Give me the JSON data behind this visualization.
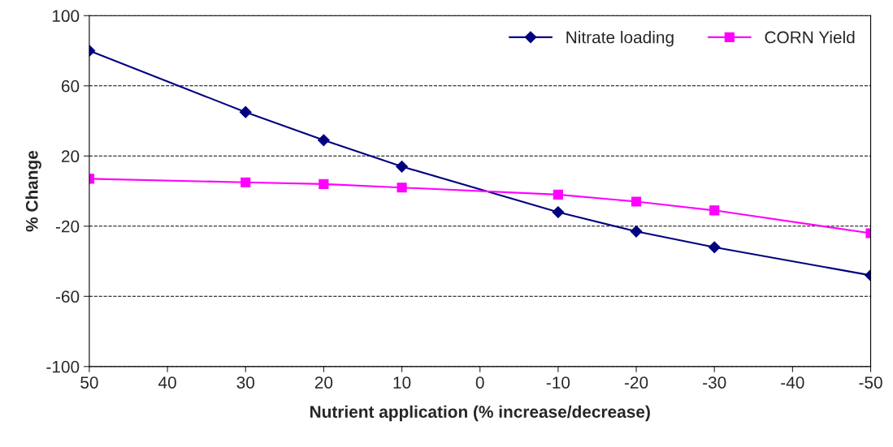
{
  "chart_data": {
    "type": "line",
    "xlabel": "Nutrient application (% increase/decrease)",
    "ylabel": "% Change",
    "x": [
      50,
      30,
      20,
      10,
      -10,
      -20,
      -30,
      -50
    ],
    "series": [
      {
        "name": "Nitrate loading",
        "color": "#000080",
        "marker": "diamond",
        "values": [
          80,
          45,
          29,
          14,
          -12,
          -23,
          -32,
          -48
        ]
      },
      {
        "name": "CORN Yield",
        "color": "#ff00ff",
        "marker": "square",
        "values": [
          7,
          5,
          4,
          2,
          -2,
          -6,
          -11,
          -24
        ]
      }
    ],
    "xlim": [
      50,
      -50
    ],
    "xticks": [
      50,
      40,
      30,
      20,
      10,
      0,
      -10,
      -20,
      -30,
      -40,
      -50
    ],
    "ylim": [
      -100,
      100
    ],
    "yticks": [
      -100,
      -60,
      -20,
      20,
      60,
      100
    ],
    "grid": "y",
    "legend": "top right"
  }
}
